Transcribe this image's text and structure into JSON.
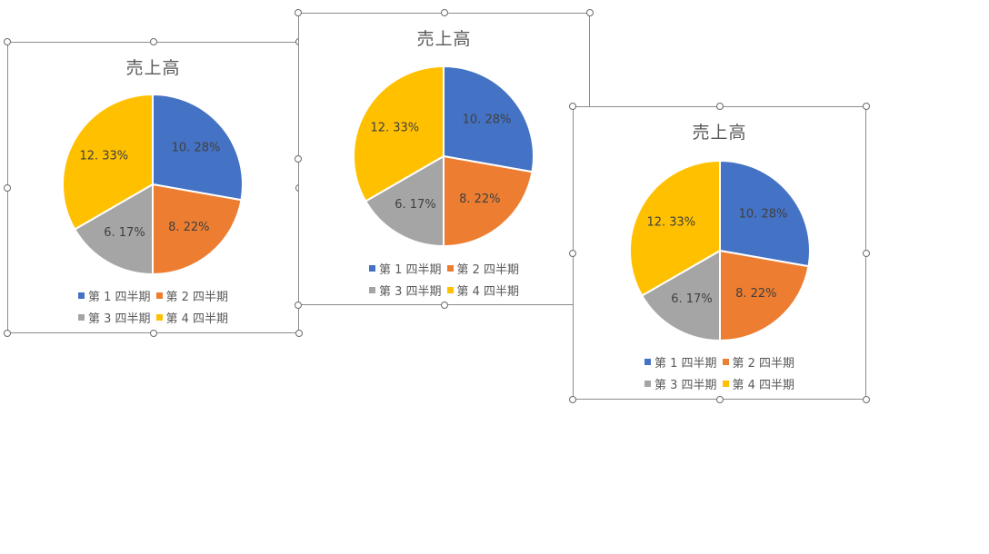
{
  "legend_labels": [
    "第 1 四半期",
    "第 2 四半期",
    "第 3 四半期",
    "第 4 四半期"
  ],
  "colors": {
    "q1": "#4472c4",
    "q2": "#ed7d31",
    "q3": "#a5a5a5",
    "q4": "#ffc000",
    "border": "#8c8c8c",
    "label_text": "#404040"
  },
  "chart_data": [
    {
      "type": "pie",
      "title": "売上高",
      "categories": [
        "第 1 四半期",
        "第 2 四半期",
        "第 3 四半期",
        "第 4 四半期"
      ],
      "values": [
        10.28,
        8.22,
        6.17,
        12.33
      ],
      "data_labels": [
        "10. 28%",
        "8. 22%",
        "6. 17%",
        "12. 33%"
      ],
      "legend_position": "bottom",
      "selected": true
    },
    {
      "type": "pie",
      "title": "売上高",
      "categories": [
        "第 1 四半期",
        "第 2 四半期",
        "第 3 四半期",
        "第 4 四半期"
      ],
      "values": [
        10.28,
        8.22,
        6.17,
        12.33
      ],
      "data_labels": [
        "10. 28%",
        "8. 22%",
        "6. 17%",
        "12. 33%"
      ],
      "legend_position": "bottom",
      "selected": true
    },
    {
      "type": "pie",
      "title": "売上高",
      "categories": [
        "第 1 四半期",
        "第 2 四半期",
        "第 3 四半期",
        "第 4 四半期"
      ],
      "values": [
        10.28,
        8.22,
        6.17,
        12.33
      ],
      "data_labels": [
        "10. 28%",
        "8. 22%",
        "6. 17%",
        "12. 33%"
      ],
      "legend_position": "bottom",
      "selected": true
    }
  ]
}
